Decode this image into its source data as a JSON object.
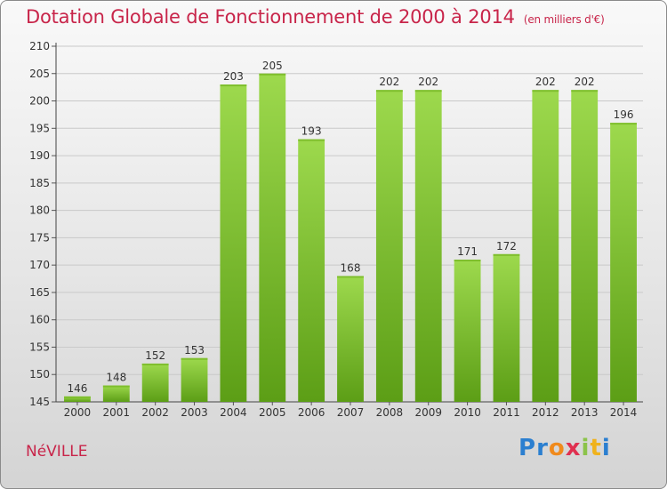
{
  "title": "Dotation Globale de Fonctionnement de 2000 à 2014",
  "unit": "(en milliers d'€)",
  "city": "NéVILLE",
  "logo": {
    "letters": [
      "P",
      "r",
      "o",
      "x",
      "i",
      "t",
      "i"
    ],
    "colors": [
      "#2b7fd0",
      "#2b7fd0",
      "#f08a1c",
      "#e03050",
      "#8bc34a",
      "#f0b21c",
      "#2b7fd0"
    ]
  },
  "colors": {
    "accent": "#c8254a",
    "bar_light": "#9dd94d",
    "bar_dark": "#5c9e16"
  },
  "chart_data": {
    "type": "bar",
    "title": "Dotation Globale de Fonctionnement de 2000 à 2014",
    "xlabel": "",
    "ylabel": "",
    "categories": [
      "2000",
      "2001",
      "2002",
      "2003",
      "2004",
      "2005",
      "2006",
      "2007",
      "2008",
      "2009",
      "2010",
      "2011",
      "2012",
      "2013",
      "2014"
    ],
    "values": [
      146,
      148,
      152,
      153,
      203,
      205,
      193,
      168,
      202,
      202,
      171,
      172,
      202,
      202,
      196
    ],
    "ylim": [
      145,
      210
    ],
    "yticks": [
      145,
      150,
      155,
      160,
      165,
      170,
      175,
      180,
      185,
      190,
      195,
      200,
      205,
      210
    ],
    "grid": true,
    "data_labels": true
  }
}
